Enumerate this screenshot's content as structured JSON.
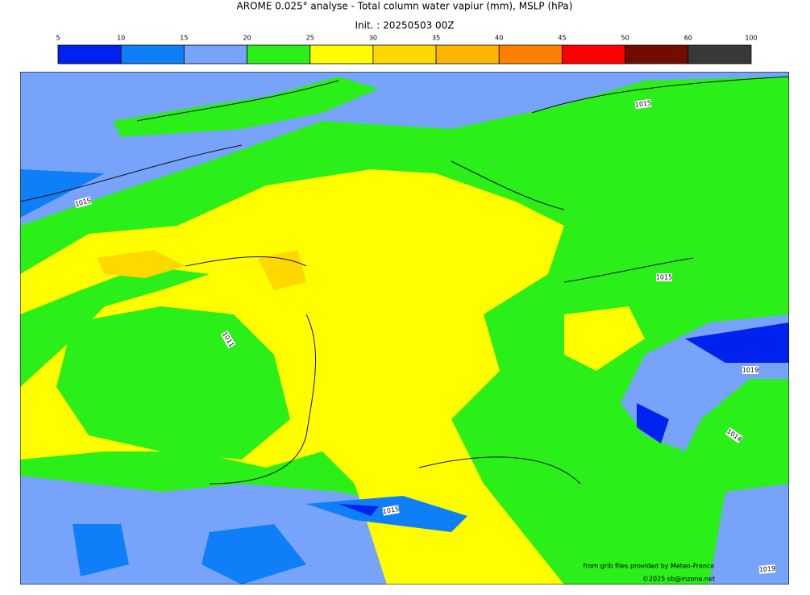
{
  "header": {
    "title": "AROME 0.025° analyse - Total column water vapiur (mm), MSLP (hPa)",
    "subtitle": "Init. : 20250503 00Z"
  },
  "colorbar": {
    "ticks": [
      5,
      10,
      15,
      20,
      25,
      30,
      35,
      40,
      45,
      50,
      60,
      100
    ],
    "colors": [
      "#0022ee",
      "#0f7ff7",
      "#77a3fb",
      "#2aef18",
      "#fffd00",
      "#ffd800",
      "#ffb400",
      "#ff8000",
      "#ff0000",
      "#6e0d00",
      "#383838"
    ]
  },
  "map": {
    "contour_labels": [
      "1015",
      "1015",
      "1011",
      "1015",
      "1019",
      "1014",
      "1015",
      "1019"
    ]
  },
  "credits": [
    "from grib files provided by Meteo-France",
    "©2025 sb@inzone.net"
  ]
}
